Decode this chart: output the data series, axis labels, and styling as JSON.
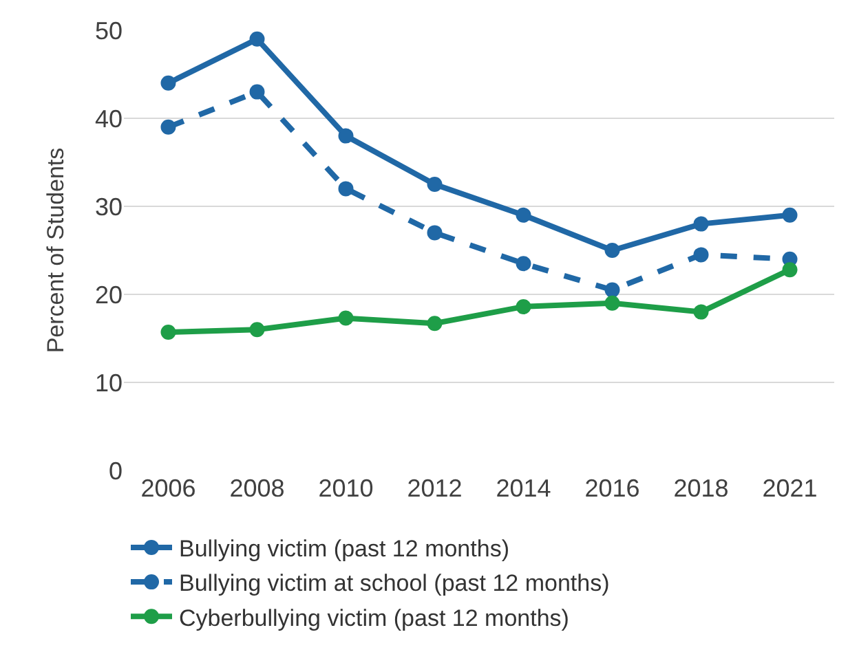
{
  "chart_data": {
    "type": "line",
    "ylabel": "Percent of Students",
    "categories": [
      "2006",
      "2008",
      "2010",
      "2012",
      "2014",
      "2016",
      "2018",
      "2021"
    ],
    "series": [
      {
        "name": "Bullying victim (past 12 months)",
        "color": "#2068a6",
        "line_style": "solid",
        "values": [
          44,
          49,
          38,
          32.5,
          29,
          25,
          28,
          29
        ]
      },
      {
        "name": "Bullying victim at school (past 12 months)",
        "color": "#2068a6",
        "line_style": "dashed",
        "values": [
          39,
          43,
          32,
          27,
          23.5,
          20.5,
          24.5,
          24
        ]
      },
      {
        "name": "Cyberbullying victim (past 12 months)",
        "color": "#1e9e48",
        "line_style": "solid",
        "values": [
          15.7,
          16,
          17.3,
          16.7,
          18.6,
          19,
          18,
          22.8
        ]
      }
    ],
    "ylim": [
      0,
      50
    ],
    "yticks": [
      0,
      10,
      20,
      30,
      40,
      50
    ],
    "grid": "y",
    "legend": "bottom",
    "marker": "circle"
  }
}
